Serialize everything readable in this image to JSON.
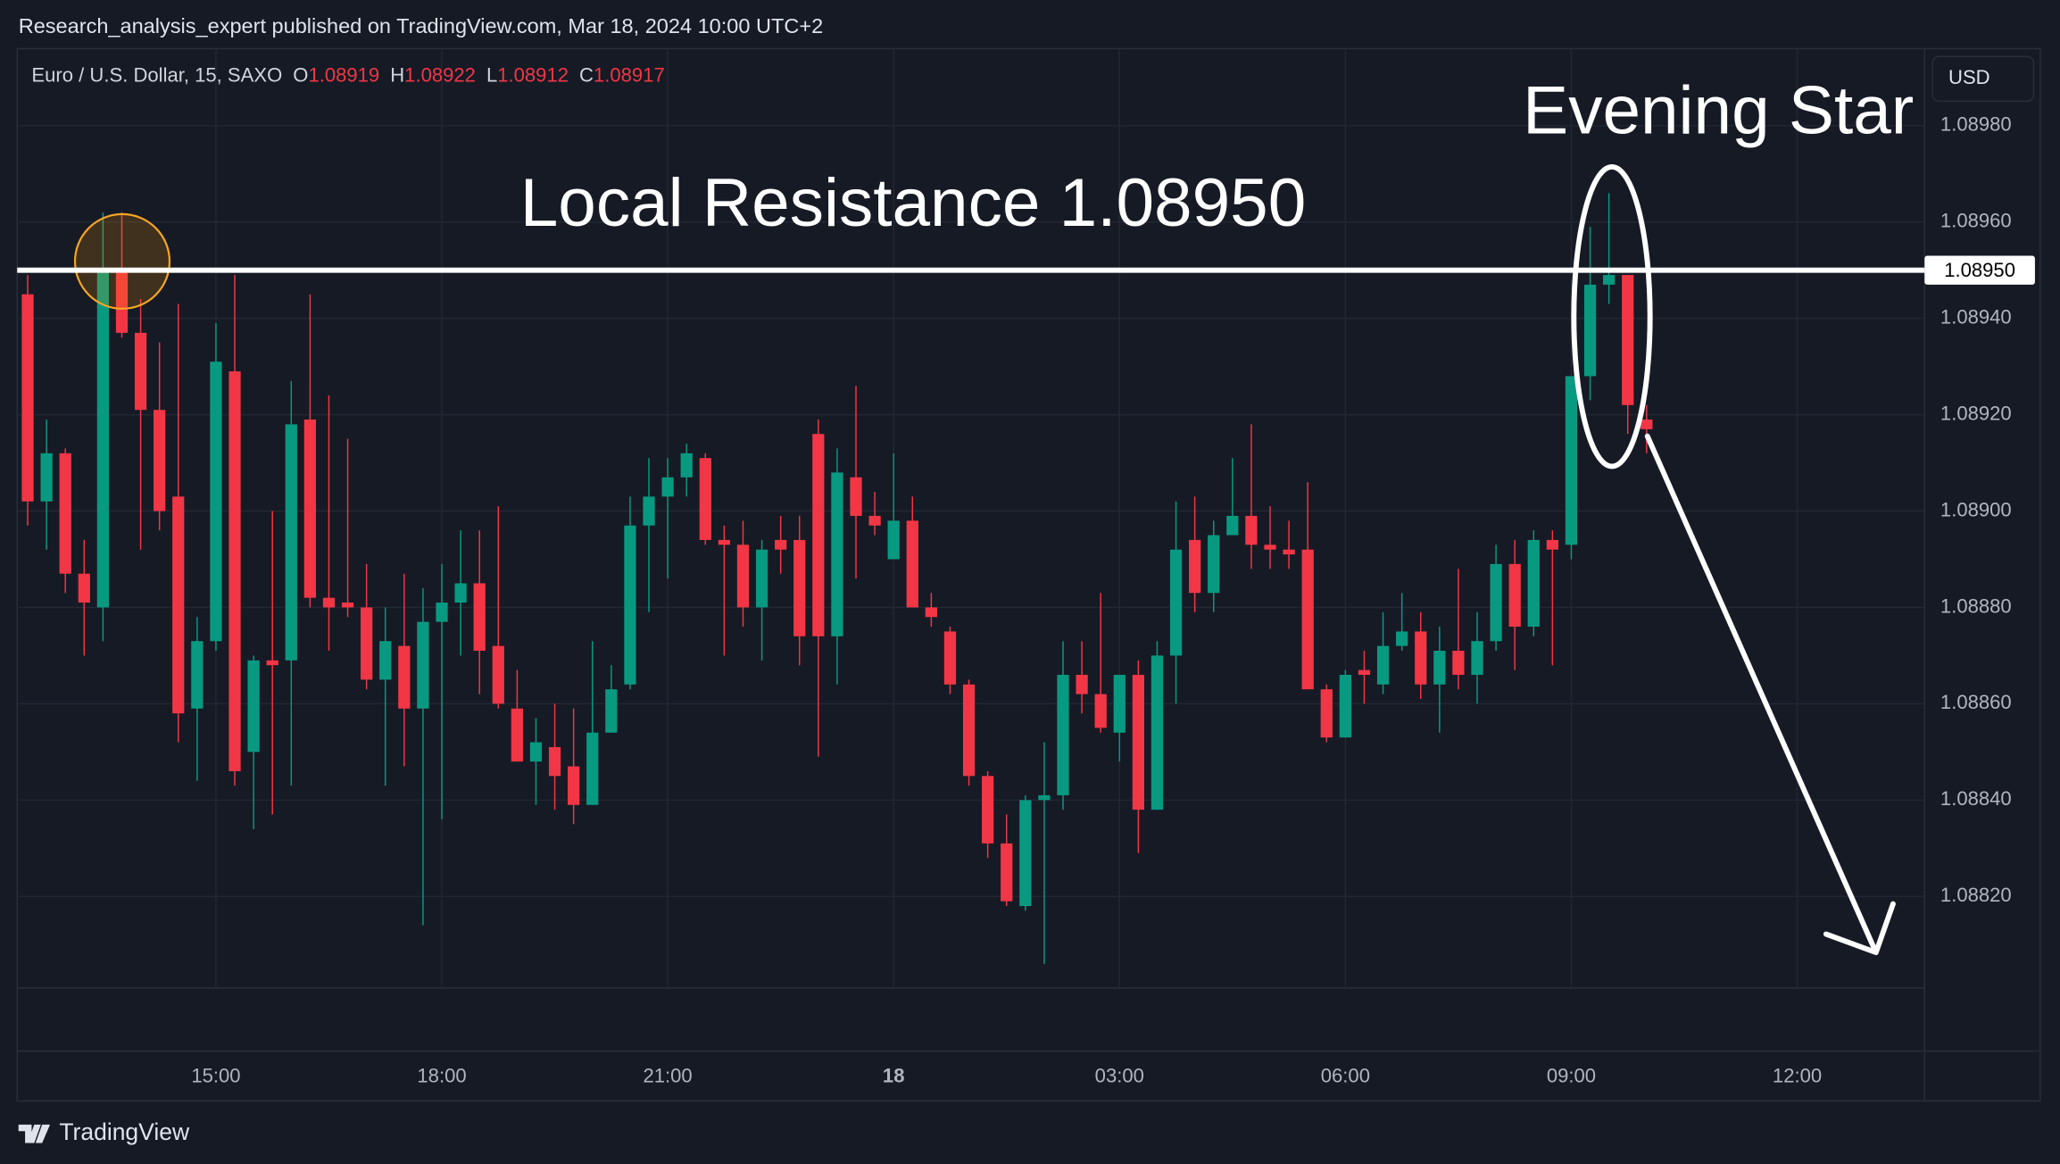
{
  "header": {
    "text": "Research_analysis_expert published on TradingView.com, Mar 18, 2024 10:00 UTC+2"
  },
  "footer": {
    "brand": "TradingView"
  },
  "chart_data": {
    "type": "candlestick",
    "symbol": "Euro / U.S. Dollar, 15, SAXO",
    "ohlc_labels": [
      "O",
      "H",
      "L",
      "C"
    ],
    "currency": "USD",
    "categories": [
      null,
      null,
      null,
      null,
      null,
      null,
      null,
      null,
      null,
      null,
      "15:00",
      null,
      null,
      null,
      null,
      null,
      null,
      null,
      null,
      null,
      null,
      null,
      "18:00",
      null,
      null,
      null,
      null,
      null,
      null,
      null,
      null,
      null,
      null,
      null,
      "21:00",
      null,
      null,
      null,
      null,
      null,
      null,
      null,
      null,
      null,
      null,
      null,
      "18",
      null,
      null,
      null,
      null,
      null,
      null,
      null,
      null,
      null,
      null,
      null,
      "03:00",
      null,
      null,
      null,
      null,
      null,
      null,
      null,
      null,
      null,
      null,
      null,
      "06:00",
      null,
      null,
      null,
      null,
      null,
      null,
      null,
      null,
      null,
      null,
      null,
      "09:00",
      null,
      null,
      null,
      null,
      null,
      null,
      null,
      null,
      null,
      null,
      null,
      "12:00",
      null,
      null,
      null,
      null,
      null,
      null
    ],
    "open": [
      1.08945,
      1.08902,
      1.08912,
      1.08887,
      1.0888,
      1.0895,
      1.08937,
      1.08921,
      1.08903,
      1.08859,
      1.08873,
      1.08929,
      1.0885,
      1.08869,
      1.08869,
      1.08919,
      1.08882,
      1.08881,
      1.0888,
      1.08865,
      1.08872,
      1.08859,
      1.08877,
      1.08881,
      1.08885,
      1.08872,
      1.08859,
      1.08848,
      1.08851,
      1.08847,
      1.08839,
      1.08854,
      1.08864,
      1.08897,
      1.08903,
      1.08907,
      1.08911,
      1.08894,
      1.08893,
      1.0888,
      1.08894,
      1.08894,
      1.08916,
      1.08874,
      1.08907,
      1.08899,
      1.0889,
      1.08898,
      1.0888,
      1.08875,
      1.08864,
      1.08845,
      1.08831,
      1.08818,
      1.0884,
      1.08841,
      1.08866,
      1.08862,
      1.08854,
      1.08866,
      1.08838,
      1.0887,
      1.08894,
      1.08883,
      1.08895,
      1.08899,
      1.08893,
      1.08892,
      1.08892,
      1.08863,
      1.08853,
      1.08867,
      1.08864,
      1.08872,
      1.08875,
      1.08864,
      1.08871,
      1.08866,
      1.08873,
      1.08889,
      1.08876,
      1.08894,
      1.08893,
      1.08928,
      1.08947,
      1.08949,
      1.08919,
      null,
      null,
      null,
      null,
      null,
      null,
      null,
      null,
      null,
      null,
      null,
      null,
      null,
      null
    ],
    "high": [
      1.08949,
      1.08919,
      1.08913,
      1.08894,
      1.08962,
      1.08962,
      1.08944,
      1.08935,
      1.08943,
      1.08878,
      1.08939,
      1.08949,
      1.0887,
      1.089,
      1.08927,
      1.08945,
      1.08924,
      1.08915,
      1.08889,
      1.0888,
      1.08887,
      1.08884,
      1.08889,
      1.08896,
      1.08896,
      1.08901,
      1.08867,
      1.08857,
      1.0886,
      1.08859,
      1.08873,
      1.08868,
      1.08903,
      1.08911,
      1.08911,
      1.08914,
      1.08912,
      1.08897,
      1.08898,
      1.08894,
      1.08899,
      1.08899,
      1.08919,
      1.08913,
      1.08926,
      1.08904,
      1.08912,
      1.08903,
      1.08883,
      1.08876,
      1.08865,
      1.08846,
      1.08837,
      1.08841,
      1.08852,
      1.08873,
      1.08873,
      1.08883,
      1.08866,
      1.08869,
      1.08873,
      1.08902,
      1.08903,
      1.08898,
      1.08911,
      1.08918,
      1.08901,
      1.08898,
      1.08906,
      1.08864,
      1.08867,
      1.08871,
      1.08879,
      1.08883,
      1.08879,
      1.08876,
      1.08888,
      1.08879,
      1.08893,
      1.08894,
      1.08896,
      1.08896,
      1.08928,
      1.08959,
      1.08966,
      1.08949,
      1.08922,
      null,
      null,
      null,
      null,
      null,
      null,
      null,
      null,
      null,
      null,
      null,
      null,
      null,
      null
    ],
    "low": [
      1.08897,
      1.08892,
      1.08883,
      1.0887,
      1.08873,
      1.08936,
      1.08892,
      1.08896,
      1.08852,
      1.08844,
      1.08871,
      1.08843,
      1.08834,
      1.08837,
      1.08843,
      1.0888,
      1.08871,
      1.08878,
      1.08863,
      1.08843,
      1.08847,
      1.08814,
      1.08836,
      1.0887,
      1.08862,
      1.08859,
      1.08848,
      1.08839,
      1.08838,
      1.08835,
      1.08839,
      1.08854,
      1.08863,
      1.08879,
      1.08886,
      1.08903,
      1.08893,
      1.0887,
      1.08876,
      1.08869,
      1.08887,
      1.08868,
      1.08849,
      1.08864,
      1.08886,
      1.08895,
      1.0889,
      1.0888,
      1.08876,
      1.08862,
      1.08843,
      1.08828,
      1.08818,
      1.08817,
      1.08806,
      1.08838,
      1.08858,
      1.08854,
      1.08848,
      1.08829,
      1.08838,
      1.0886,
      1.08879,
      1.08879,
      1.08895,
      1.08888,
      1.08888,
      1.08888,
      1.08863,
      1.08852,
      1.08853,
      1.0886,
      1.08862,
      1.08871,
      1.08861,
      1.08854,
      1.08863,
      1.0886,
      1.08871,
      1.08867,
      1.08874,
      1.08868,
      1.0889,
      1.08923,
      1.08943,
      1.08916,
      1.08912,
      null,
      null,
      null,
      null,
      null,
      null,
      null,
      null,
      null,
      null,
      null,
      null,
      null,
      null
    ],
    "close": [
      1.08902,
      1.08912,
      1.08887,
      1.08881,
      1.0895,
      1.08937,
      1.08921,
      1.089,
      1.08858,
      1.08873,
      1.08931,
      1.08846,
      1.08869,
      1.08868,
      1.08918,
      1.08882,
      1.0888,
      1.0888,
      1.08865,
      1.08873,
      1.08859,
      1.08877,
      1.08881,
      1.08885,
      1.08871,
      1.0886,
      1.08848,
      1.08852,
      1.08845,
      1.08839,
      1.08854,
      1.08863,
      1.08897,
      1.08903,
      1.08907,
      1.08912,
      1.08894,
      1.08893,
      1.0888,
      1.08892,
      1.08892,
      1.08874,
      1.08874,
      1.08908,
      1.08899,
      1.08897,
      1.08898,
      1.0888,
      1.08878,
      1.08864,
      1.08845,
      1.08831,
      1.08819,
      1.0884,
      1.08841,
      1.08866,
      1.08862,
      1.08855,
      1.08866,
      1.08838,
      1.0887,
      1.08892,
      1.08883,
      1.08895,
      1.08899,
      1.08893,
      1.08892,
      1.08891,
      1.08863,
      1.08853,
      1.08866,
      1.08866,
      1.08872,
      1.08875,
      1.08864,
      1.08871,
      1.08866,
      1.08873,
      1.08889,
      1.08876,
      1.08894,
      1.08892,
      1.08928,
      1.08947,
      1.08949,
      1.08922,
      1.08917,
      null,
      null,
      null,
      null,
      null,
      null,
      null,
      null,
      null,
      null,
      null,
      null,
      null,
      null
    ],
    "up_color": "#089981",
    "down_color": "#f23645",
    "ylim": [
      1.08801,
      1.08996
    ],
    "yticks": [
      {
        "value": 1.0882,
        "label": "1.08820"
      },
      {
        "value": 1.0884,
        "label": "1.08840"
      },
      {
        "value": 1.0886,
        "label": "1.08860"
      },
      {
        "value": 1.0888,
        "label": "1.08880"
      },
      {
        "value": 1.089,
        "label": "1.08900"
      },
      {
        "value": 1.0892,
        "label": "1.08920"
      },
      {
        "value": 1.0894,
        "label": "1.08940"
      },
      {
        "value": 1.0896,
        "label": "1.08960"
      },
      {
        "value": 1.0898,
        "label": "1.08980"
      }
    ],
    "grid": true,
    "resistance": {
      "value": 1.0895,
      "label": "1.08950"
    },
    "annotations": [
      {
        "text": "Local Resistance 1.08950"
      },
      {
        "text": "Evening Star"
      }
    ]
  }
}
